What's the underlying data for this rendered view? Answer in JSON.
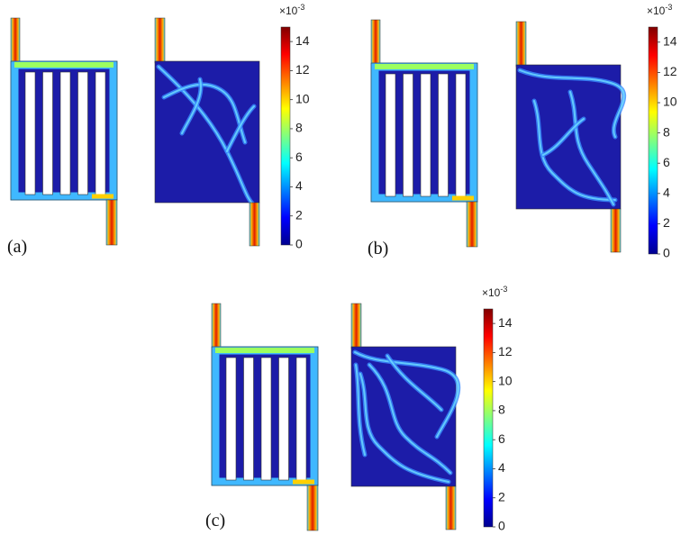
{
  "panels": [
    {
      "label": "(a)",
      "colorbar": {
        "multiplier": "×10",
        "exponent": "-3",
        "lim": [
          0,
          15
        ],
        "ticks": [
          0,
          2,
          4,
          6,
          8,
          10,
          12,
          14
        ]
      }
    },
    {
      "label": "(b)",
      "colorbar": {
        "multiplier": "×10",
        "exponent": "-3",
        "lim": [
          0,
          15
        ],
        "ticks": [
          0,
          2,
          4,
          6,
          8,
          10,
          12,
          14
        ]
      }
    },
    {
      "label": "(c)",
      "colorbar": {
        "multiplier": "×10",
        "exponent": "-3",
        "lim": [
          0,
          15
        ],
        "ticks": [
          0,
          2,
          4,
          6,
          8,
          10,
          12,
          14
        ]
      }
    }
  ]
}
